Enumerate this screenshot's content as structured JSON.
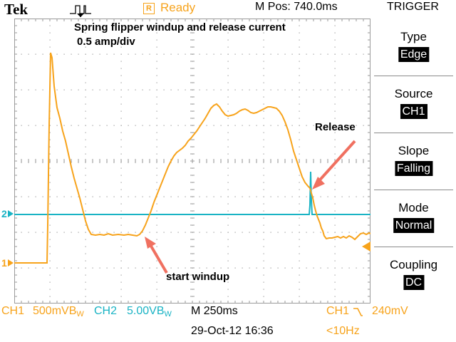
{
  "header": {
    "brand": "Tek",
    "trigger_status": "Ready",
    "status_icon": "R",
    "m_pos": "M Pos: 740.0ms",
    "menu_title": "TRIGGER"
  },
  "screen": {
    "title_line1": "Spring flipper windup and release current",
    "title_line2": "0.5 amp/div",
    "annotations": {
      "release": "Release",
      "start_windup": "start windup"
    },
    "ch1_marker": "1",
    "ch2_marker": "2",
    "colors": {
      "ch1": "#f7a31b",
      "ch2": "#19b3c4",
      "arrow": "#f07060",
      "grid": "#9a9a9a"
    }
  },
  "menu": {
    "items": [
      {
        "label": "Type",
        "value": "Edge"
      },
      {
        "label": "Source",
        "value": "CH1"
      },
      {
        "label": "Slope",
        "value": "Falling"
      },
      {
        "label": "Mode",
        "value": "Normal"
      },
      {
        "label": "Coupling",
        "value": "DC"
      }
    ]
  },
  "footer": {
    "ch1_label": "CH1",
    "ch1_scale": "500mVB",
    "ch1_bw": "W",
    "ch2_label": "CH2",
    "ch2_scale": "5.00VB",
    "ch2_bw": "W",
    "timebase": "M 250ms",
    "trigger_source": "CH1",
    "trigger_level": "240mV",
    "datetime": "29-Oct-12 16:36",
    "frequency": "<10Hz"
  }
}
